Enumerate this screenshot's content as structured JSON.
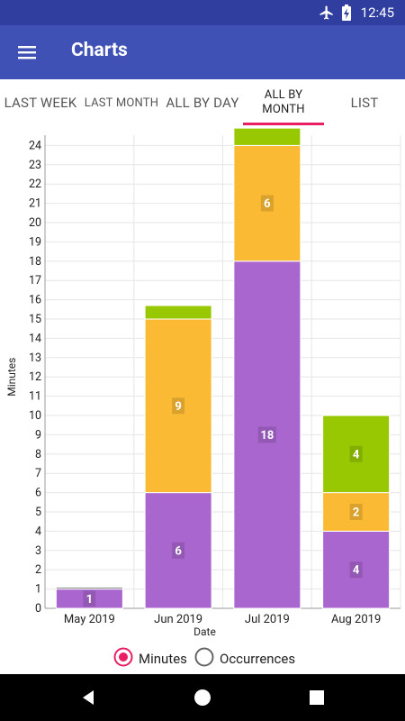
{
  "status_bar": {
    "time": "12:45",
    "icons": [
      "airplane-mode-icon",
      "battery-charging-icon"
    ]
  },
  "app_bar": {
    "title": "Charts",
    "menu_icon": "hamburger-menu-icon"
  },
  "tabs": [
    {
      "label": "LAST WEEK",
      "active": false
    },
    {
      "label": "LAST MONTH",
      "active": false
    },
    {
      "label": "ALL BY DAY",
      "active": false
    },
    {
      "label": "ALL BY MONTH",
      "active": true
    },
    {
      "label": "LIST",
      "active": false
    }
  ],
  "legend": {
    "minutes_label": "Minutes",
    "occurrences_label": "Occurrences",
    "selected": "Minutes"
  },
  "colors": {
    "purple": "#a966cf",
    "orange": "#fbba33",
    "green": "#97c802",
    "gray": "#888888",
    "accent": "#e91e63",
    "primary": "#3f51b5",
    "primary_dark": "#303f9f"
  },
  "chart_data": {
    "type": "bar",
    "stacked": true,
    "categories": [
      "May 2019",
      "Jun 2019",
      "Jul 2019",
      "Aug 2019"
    ],
    "series": [
      {
        "color": "#a966cf",
        "values": [
          1,
          6,
          18,
          4
        ],
        "labels": [
          "1",
          "6",
          "18",
          "4"
        ]
      },
      {
        "color": "#fbba33",
        "values": [
          0,
          9,
          6,
          2
        ],
        "labels": [
          "",
          "9",
          "6",
          "2"
        ]
      },
      {
        "color": "#97c802",
        "values": [
          0,
          0.7,
          0.9,
          4
        ],
        "labels": [
          "",
          "",
          "",
          "4"
        ]
      },
      {
        "color": "#888888",
        "values": [
          0.1,
          0,
          0,
          0
        ],
        "labels": [
          "",
          "",
          "",
          ""
        ]
      }
    ],
    "xlabel": "Date",
    "ylabel": "Minutes",
    "ylim": [
      0,
      24
    ],
    "yticks": [
      0,
      1,
      2,
      3,
      4,
      5,
      6,
      7,
      8,
      9,
      10,
      11,
      12,
      13,
      14,
      15,
      16,
      17,
      18,
      19,
      20,
      21,
      22,
      23,
      24
    ],
    "grid": true
  }
}
